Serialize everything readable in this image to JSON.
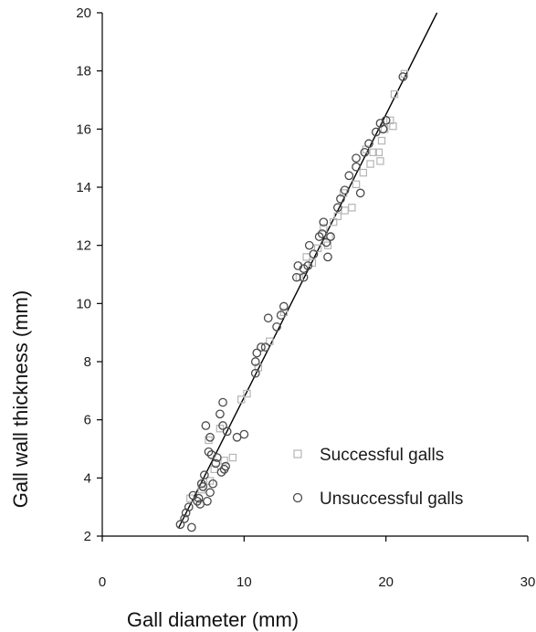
{
  "chart_data": {
    "type": "scatter",
    "title": "",
    "xlabel": "Gall diameter (mm)",
    "ylabel": "Gall wall thickness (mm)",
    "xlim": [
      0,
      30
    ],
    "ylim": [
      2,
      20
    ],
    "xticks": [
      0,
      10,
      20,
      30
    ],
    "yticks": [
      2,
      4,
      6,
      8,
      10,
      12,
      14,
      16,
      18,
      20
    ],
    "grid": false,
    "legend_position": "bottom-right",
    "series": [
      {
        "name": "Successful galls",
        "marker": "square",
        "color": "#b5b5b5",
        "points": [
          [
            6.2,
            3.3
          ],
          [
            7.0,
            3.6
          ],
          [
            7.6,
            3.9
          ],
          [
            7.9,
            4.3
          ],
          [
            8.6,
            4.6
          ],
          [
            9.2,
            4.7
          ],
          [
            7.5,
            5.3
          ],
          [
            8.3,
            5.7
          ],
          [
            9.8,
            6.7
          ],
          [
            10.2,
            6.9
          ],
          [
            11.0,
            7.8
          ],
          [
            11.8,
            8.7
          ],
          [
            12.8,
            9.7
          ],
          [
            13.9,
            10.9
          ],
          [
            14.8,
            11.4
          ],
          [
            15.2,
            11.9
          ],
          [
            15.9,
            12.0
          ],
          [
            16.3,
            12.8
          ],
          [
            16.6,
            13.0
          ],
          [
            17.1,
            13.2
          ],
          [
            17.6,
            13.3
          ],
          [
            17.0,
            13.8
          ],
          [
            17.9,
            14.1
          ],
          [
            18.4,
            14.5
          ],
          [
            18.9,
            14.8
          ],
          [
            19.6,
            14.9
          ],
          [
            19.5,
            15.2
          ],
          [
            19.1,
            15.2
          ],
          [
            19.7,
            15.6
          ],
          [
            18.6,
            15.3
          ],
          [
            19.9,
            16.0
          ],
          [
            20.3,
            16.3
          ],
          [
            20.5,
            16.1
          ],
          [
            20.6,
            17.2
          ],
          [
            21.3,
            17.9
          ],
          [
            16.0,
            12.3
          ],
          [
            14.4,
            11.6
          ],
          [
            15.6,
            12.6
          ]
        ]
      },
      {
        "name": "Unsuccessful galls",
        "marker": "circle",
        "color": "#4a4a4a",
        "points": [
          [
            5.5,
            2.4
          ],
          [
            5.8,
            2.6
          ],
          [
            6.3,
            2.3
          ],
          [
            5.9,
            2.8
          ],
          [
            6.1,
            3.0
          ],
          [
            6.4,
            3.4
          ],
          [
            6.7,
            3.2
          ],
          [
            6.9,
            3.1
          ],
          [
            7.1,
            3.7
          ],
          [
            7.4,
            3.2
          ],
          [
            7.6,
            3.5
          ],
          [
            7.8,
            3.8
          ],
          [
            7.2,
            4.1
          ],
          [
            7.0,
            3.8
          ],
          [
            8.0,
            4.5
          ],
          [
            8.4,
            4.2
          ],
          [
            8.7,
            4.4
          ],
          [
            7.5,
            4.9
          ],
          [
            7.7,
            4.8
          ],
          [
            8.1,
            4.7
          ],
          [
            7.3,
            5.8
          ],
          [
            8.5,
            5.8
          ],
          [
            8.8,
            5.6
          ],
          [
            8.3,
            6.2
          ],
          [
            8.5,
            6.6
          ],
          [
            9.5,
            5.4
          ],
          [
            10.0,
            5.5
          ],
          [
            7.6,
            5.4
          ],
          [
            6.8,
            3.3
          ],
          [
            8.6,
            4.3
          ],
          [
            10.8,
            8.0
          ],
          [
            10.9,
            8.3
          ],
          [
            11.2,
            8.5
          ],
          [
            11.5,
            8.5
          ],
          [
            10.8,
            7.6
          ],
          [
            11.7,
            9.5
          ],
          [
            12.3,
            9.2
          ],
          [
            12.6,
            9.6
          ],
          [
            12.8,
            9.9
          ],
          [
            13.7,
            10.9
          ],
          [
            13.8,
            11.3
          ],
          [
            14.2,
            11.2
          ],
          [
            14.5,
            11.3
          ],
          [
            14.6,
            12.0
          ],
          [
            14.9,
            11.7
          ],
          [
            15.3,
            12.3
          ],
          [
            15.5,
            12.4
          ],
          [
            15.6,
            12.8
          ],
          [
            15.9,
            11.6
          ],
          [
            16.1,
            12.3
          ],
          [
            16.6,
            13.3
          ],
          [
            16.8,
            13.6
          ],
          [
            17.1,
            13.9
          ],
          [
            17.4,
            14.4
          ],
          [
            17.9,
            14.7
          ],
          [
            18.2,
            13.8
          ],
          [
            18.5,
            15.2
          ],
          [
            18.8,
            15.5
          ],
          [
            19.3,
            15.9
          ],
          [
            19.6,
            16.2
          ],
          [
            20.0,
            16.3
          ],
          [
            21.2,
            17.8
          ],
          [
            14.2,
            10.9
          ],
          [
            15.8,
            12.1
          ],
          [
            17.9,
            15.0
          ],
          [
            19.8,
            16.0
          ]
        ]
      }
    ],
    "fit_line": {
      "x": [
        5.4,
        23.6
      ],
      "y": [
        2.3,
        20.0
      ]
    }
  }
}
